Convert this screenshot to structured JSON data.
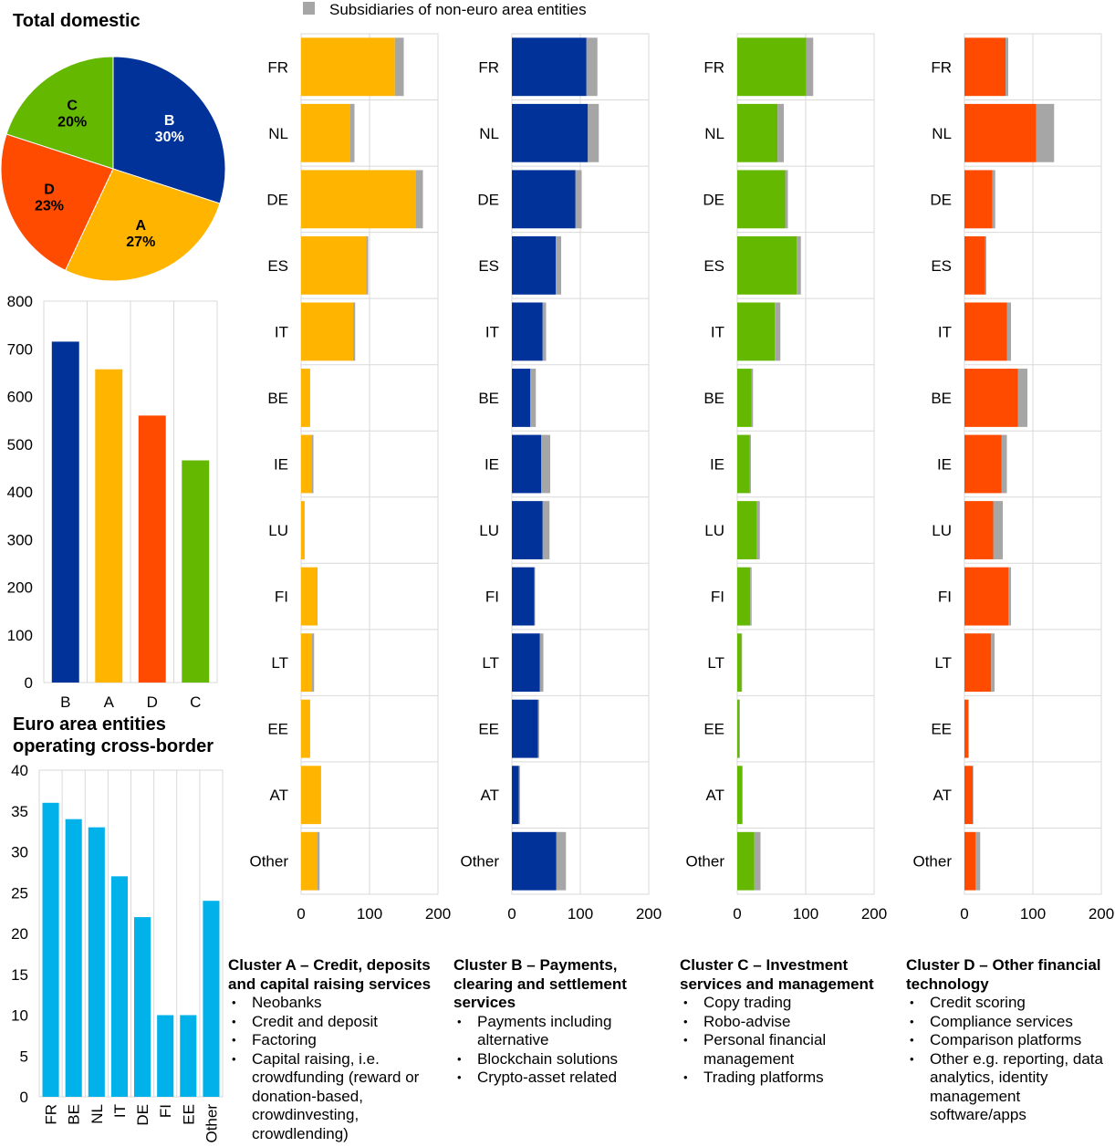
{
  "pie": {
    "title": "Total domestic",
    "slices": [
      {
        "label": "B",
        "pct_label": "30%",
        "value": 30,
        "color": "#003299"
      },
      {
        "label": "A",
        "pct_label": "27%",
        "value": 27,
        "color": "#FFB400"
      },
      {
        "label": "D",
        "pct_label": "23%",
        "value": 23,
        "color": "#FF4B00"
      },
      {
        "label": "C",
        "pct_label": "20%",
        "value": 20,
        "color": "#65B800"
      }
    ]
  },
  "legend": {
    "label": "Subsidiaries of non-euro area entities",
    "color": "#A6A6A6"
  },
  "chart_data": [
    {
      "type": "bar",
      "title": "",
      "categories": [
        "B",
        "A",
        "D",
        "C"
      ],
      "values": [
        715,
        657,
        560,
        466
      ],
      "colors": [
        "#003299",
        "#FFB400",
        "#FF4B00",
        "#65B800"
      ],
      "ylim": [
        0,
        800
      ],
      "yticks": [
        "0",
        "100",
        "200",
        "300",
        "400",
        "500",
        "600",
        "700",
        "800"
      ]
    },
    {
      "type": "bar",
      "title": "Euro area entities operating cross-border",
      "title_lines": [
        "Euro area entities",
        "operating cross-border"
      ],
      "categories": [
        "FR",
        "BE",
        "NL",
        "IT",
        "DE",
        "FI",
        "EE",
        "Other"
      ],
      "values": [
        36,
        34,
        33,
        27,
        22,
        10,
        10,
        24
      ],
      "color": "#00B1EA",
      "ylim": [
        0,
        40
      ],
      "yticks": [
        "0",
        "5",
        "10",
        "15",
        "20",
        "25",
        "30",
        "35",
        "40"
      ]
    },
    {
      "type": "bar",
      "orientation": "horizontal",
      "stacked": true,
      "categories": [
        "FR",
        "NL",
        "DE",
        "ES",
        "IT",
        "BE",
        "IE",
        "LU",
        "FI",
        "LT",
        "EE",
        "AT",
        "Other"
      ],
      "xlim": [
        0,
        200
      ],
      "xticks": [
        "0",
        "100",
        "200"
      ],
      "panels": [
        {
          "name": "Cluster A",
          "color": "#FFB400",
          "series": [
            {
              "values": [
                137,
                72,
                168,
                95,
                76,
                12,
                15,
                4,
                23,
                16,
                12,
                28,
                24
              ]
            },
            {
              "name": "Subsidiaries of non-euro area entities",
              "values": [
                13,
                6,
                10,
                3,
                3,
                1,
                3,
                1,
                1,
                3,
                1,
                1,
                3
              ]
            }
          ]
        },
        {
          "name": "Cluster B",
          "color": "#003299",
          "series": [
            {
              "values": [
                109,
                111,
                93,
                64,
                45,
                27,
                43,
                45,
                33,
                41,
                38,
                10,
                65
              ]
            },
            {
              "name": "Subsidiaries of non-euro area entities",
              "values": [
                16,
                16,
                9,
                8,
                5,
                8,
                13,
                10,
                1,
                5,
                2,
                2,
                14
              ]
            }
          ]
        },
        {
          "name": "Cluster C",
          "color": "#65B800",
          "series": [
            {
              "values": [
                101,
                59,
                70,
                87,
                55,
                21,
                18,
                28,
                19,
                6,
                3,
                7,
                25
              ]
            },
            {
              "name": "Subsidiaries of non-euro area entities",
              "values": [
                10,
                9,
                4,
                6,
                8,
                2,
                2,
                5,
                2,
                1,
                1,
                1,
                9
              ]
            }
          ]
        },
        {
          "name": "Cluster D",
          "color": "#FF4B00",
          "series": [
            {
              "values": [
                60,
                105,
                41,
                30,
                62,
                78,
                54,
                42,
                64,
                39,
                6,
                12,
                16
              ]
            },
            {
              "name": "Subsidiaries of non-euro area entities",
              "values": [
                4,
                26,
                4,
                2,
                6,
                14,
                8,
                14,
                4,
                5,
                0,
                1,
                7
              ]
            }
          ]
        }
      ]
    }
  ],
  "clusters": [
    {
      "title_lines": [
        "Cluster A – Credit, deposits",
        "and capital raising services"
      ],
      "items": [
        "Neobanks",
        "Credit and deposit",
        "Factoring",
        "Capital raising, i.e. crowdfunding (reward or donation-based, crowdinvesting, crowdlending)"
      ]
    },
    {
      "title_lines": [
        "Cluster B – Payments,",
        "clearing and settlement",
        "services"
      ],
      "items": [
        "Payments including alternative",
        "Blockchain solutions",
        "Crypto-asset related"
      ]
    },
    {
      "title_lines": [
        "Cluster C – Investment",
        "services and management"
      ],
      "items": [
        "Copy trading",
        "Robo-advise",
        "Personal financial management",
        "Trading platforms"
      ]
    },
    {
      "title_lines": [
        "Cluster D – Other financial",
        "technology"
      ],
      "items": [
        "Credit scoring",
        "Compliance services",
        "Comparison platforms",
        "Other e.g. reporting, data analytics, identity management software/apps"
      ]
    }
  ]
}
